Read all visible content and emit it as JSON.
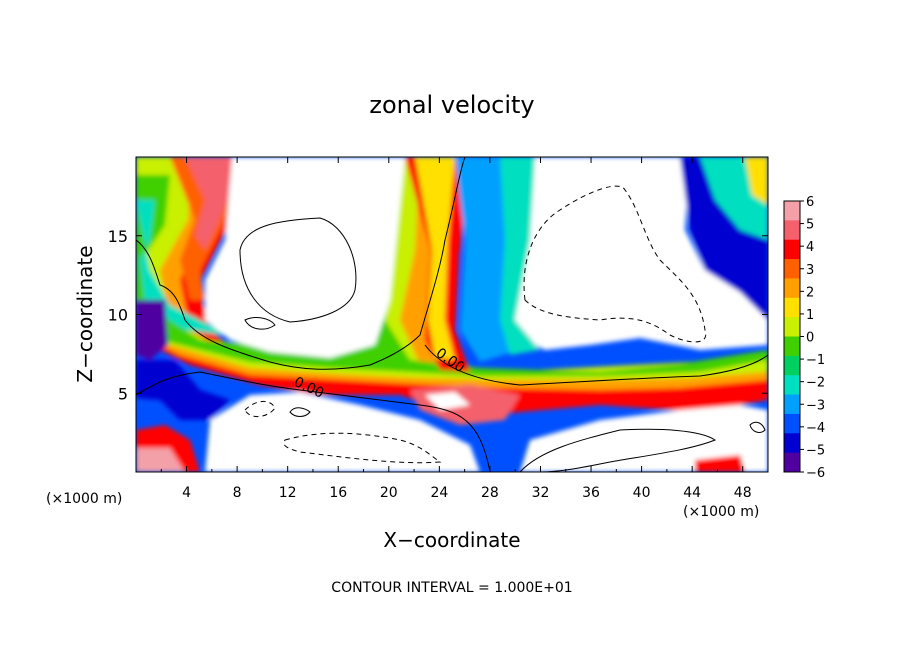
{
  "chart_data": {
    "type": "heatmap",
    "title": "zonal velocity",
    "xlabel": "X−coordinate",
    "ylabel": "Z−coordinate",
    "x_unit_left": "(×1000 m)",
    "x_unit_right": "(×1000 m)",
    "footer": "CONTOUR INTERVAL = 1.000E+01",
    "xlim": [
      0,
      50
    ],
    "ylim": [
      0,
      20
    ],
    "x_ticks": [
      "4",
      "8",
      "12",
      "16",
      "20",
      "24",
      "28",
      "32",
      "36",
      "40",
      "44",
      "48"
    ],
    "y_ticks": [
      "5",
      "10",
      "15"
    ],
    "contour_labels": [
      "0.00",
      "0.00"
    ],
    "colorbar": {
      "min": -6,
      "max": 6,
      "ticks": [
        "6",
        "5",
        "4",
        "3",
        "2",
        "1",
        "0",
        "−1",
        "−2",
        "−3",
        "−4",
        "−5",
        "−6"
      ],
      "colors": [
        "#f4a0a8",
        "#f4606c",
        "#ff0000",
        "#ff6000",
        "#ffa000",
        "#ffe000",
        "#c8f000",
        "#40d000",
        "#00d060",
        "#00e0c0",
        "#00a0ff",
        "#0050ff",
        "#0000d0",
        "#5000a0"
      ]
    }
  }
}
